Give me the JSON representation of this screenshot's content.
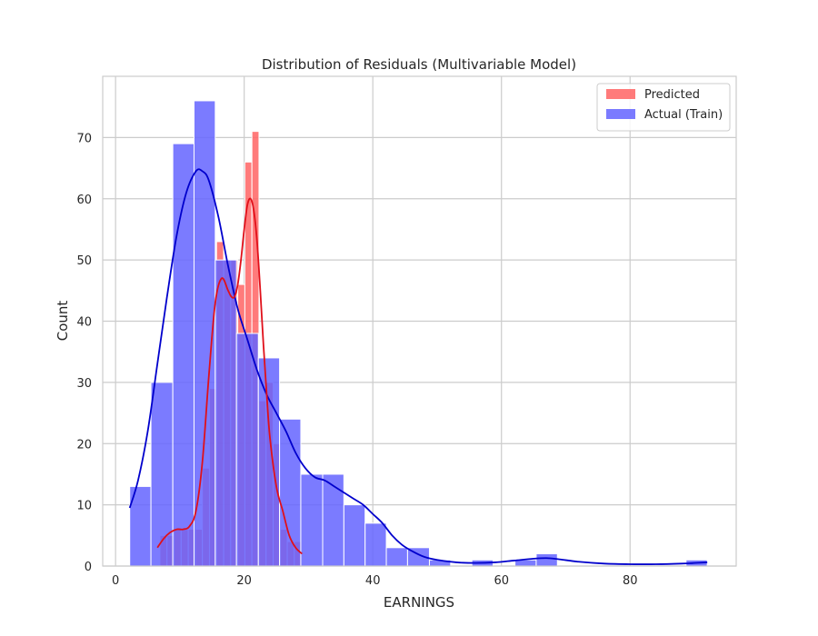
{
  "chart_data": {
    "type": "bar",
    "title": "Distribution of Residuals (Multivariable Model)",
    "xlabel": "EARNINGS",
    "ylabel": "Count",
    "xlim": [
      -2,
      96.5
    ],
    "ylim": [
      0,
      80
    ],
    "xticks": [
      0,
      20,
      40,
      60,
      80
    ],
    "yticks": [
      0,
      10,
      20,
      30,
      40,
      50,
      60,
      70
    ],
    "grid": true,
    "legend_position": "top-right",
    "series": [
      {
        "name": "Predicted",
        "color": "#ff6464",
        "bins": [
          [
            6.9,
            8.0,
            5
          ],
          [
            8.0,
            9.1,
            5
          ],
          [
            9.1,
            10.2,
            6
          ],
          [
            10.2,
            11.3,
            6
          ],
          [
            11.3,
            12.4,
            6
          ],
          [
            12.4,
            13.5,
            6
          ],
          [
            13.5,
            14.6,
            16
          ],
          [
            14.6,
            15.7,
            29
          ],
          [
            15.7,
            16.8,
            53
          ],
          [
            16.8,
            17.9,
            50
          ],
          [
            17.9,
            19.0,
            50
          ],
          [
            19.0,
            20.1,
            46
          ],
          [
            20.1,
            21.2,
            66
          ],
          [
            21.2,
            22.3,
            71
          ],
          [
            22.3,
            23.4,
            27
          ],
          [
            23.4,
            24.5,
            30
          ],
          [
            24.5,
            25.6,
            20
          ],
          [
            25.6,
            26.7,
            6
          ],
          [
            26.7,
            27.8,
            4
          ],
          [
            27.8,
            28.9,
            4
          ]
        ],
        "kde": [
          [
            6.5,
            3
          ],
          [
            7.5,
            4.5
          ],
          [
            8.5,
            5.5
          ],
          [
            9.5,
            6
          ],
          [
            10.5,
            6
          ],
          [
            11.5,
            6.5
          ],
          [
            12.5,
            9
          ],
          [
            13.5,
            17
          ],
          [
            14.5,
            31
          ],
          [
            15.5,
            43
          ],
          [
            16.5,
            47
          ],
          [
            17.5,
            45
          ],
          [
            18.0,
            44
          ],
          [
            18.5,
            44
          ],
          [
            19.0,
            46
          ],
          [
            19.5,
            50
          ],
          [
            20.0,
            55
          ],
          [
            20.5,
            59
          ],
          [
            21.0,
            60
          ],
          [
            21.5,
            58
          ],
          [
            22.0,
            53
          ],
          [
            22.5,
            45
          ],
          [
            23.0,
            36
          ],
          [
            23.5,
            28
          ],
          [
            24.0,
            21
          ],
          [
            25.0,
            13
          ],
          [
            26.0,
            9
          ],
          [
            27.0,
            5
          ],
          [
            28.0,
            3
          ],
          [
            29.0,
            2
          ]
        ]
      },
      {
        "name": "Actual (Train)",
        "color": "#6464ff",
        "bins": [
          [
            2.2,
            5.5,
            13
          ],
          [
            5.5,
            8.9,
            30
          ],
          [
            8.9,
            12.2,
            69
          ],
          [
            12.2,
            15.5,
            76
          ],
          [
            15.5,
            18.8,
            50
          ],
          [
            18.8,
            22.2,
            38
          ],
          [
            22.2,
            25.5,
            34
          ],
          [
            25.5,
            28.8,
            24
          ],
          [
            28.8,
            32.2,
            15
          ],
          [
            32.2,
            35.5,
            15
          ],
          [
            35.5,
            38.8,
            10
          ],
          [
            38.8,
            42.1,
            7
          ],
          [
            42.1,
            45.4,
            3
          ],
          [
            45.4,
            48.8,
            3
          ],
          [
            48.8,
            52.1,
            1
          ],
          [
            52.1,
            55.4,
            0
          ],
          [
            55.4,
            58.7,
            1
          ],
          [
            58.7,
            62.1,
            0
          ],
          [
            62.1,
            65.4,
            1
          ],
          [
            65.4,
            68.7,
            2
          ],
          [
            68.7,
            72.0,
            0
          ],
          [
            72.0,
            75.4,
            0
          ],
          [
            75.4,
            78.7,
            0
          ],
          [
            78.7,
            82.0,
            0
          ],
          [
            82.0,
            85.3,
            0
          ],
          [
            85.3,
            88.7,
            0
          ],
          [
            88.7,
            92.0,
            1
          ]
        ],
        "kde": [
          [
            2.2,
            9.5
          ],
          [
            3.5,
            14
          ],
          [
            5.0,
            22
          ],
          [
            6.5,
            33
          ],
          [
            8.0,
            44
          ],
          [
            9.5,
            54
          ],
          [
            11.0,
            61
          ],
          [
            12.5,
            64.5
          ],
          [
            13.5,
            64.5
          ],
          [
            14.5,
            63
          ],
          [
            16.0,
            57
          ],
          [
            17.5,
            49
          ],
          [
            19.0,
            42
          ],
          [
            20.5,
            37
          ],
          [
            22.0,
            32
          ],
          [
            23.5,
            28
          ],
          [
            25.0,
            25
          ],
          [
            26.5,
            22
          ],
          [
            28.0,
            18.5
          ],
          [
            29.5,
            16
          ],
          [
            31.0,
            14.5
          ],
          [
            32.5,
            14
          ],
          [
            34.0,
            13
          ],
          [
            35.5,
            12
          ],
          [
            37.0,
            11
          ],
          [
            38.5,
            10
          ],
          [
            40.0,
            8.5
          ],
          [
            41.5,
            7
          ],
          [
            43.0,
            5
          ],
          [
            44.5,
            3.5
          ],
          [
            46.0,
            2.5
          ],
          [
            48.0,
            1.5
          ],
          [
            50.0,
            1
          ],
          [
            53.0,
            0.6
          ],
          [
            56.0,
            0.5
          ],
          [
            59.0,
            0.6
          ],
          [
            62.0,
            0.9
          ],
          [
            65.0,
            1.2
          ],
          [
            67.0,
            1.3
          ],
          [
            69.0,
            1.1
          ],
          [
            72.0,
            0.7
          ],
          [
            76.0,
            0.4
          ],
          [
            80.0,
            0.3
          ],
          [
            84.0,
            0.3
          ],
          [
            88.0,
            0.4
          ],
          [
            90.0,
            0.5
          ],
          [
            92.0,
            0.6
          ]
        ],
        "kde_color": "#0000cc"
      }
    ],
    "predicted_kde_color": "#e0101a"
  }
}
